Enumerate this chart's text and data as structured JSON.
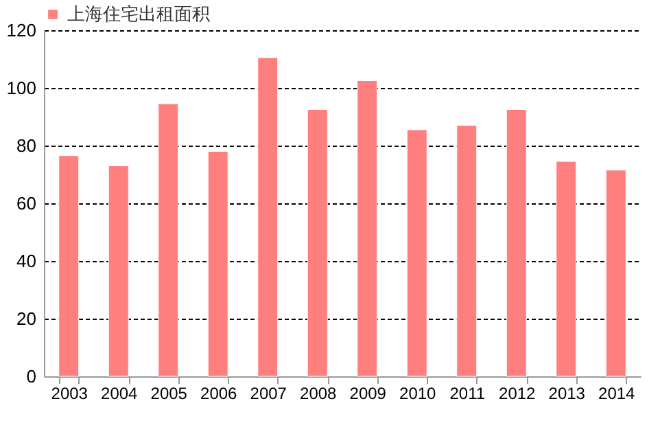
{
  "chart_data": {
    "type": "bar",
    "categories": [
      "2003",
      "2004",
      "2005",
      "2006",
      "2007",
      "2008",
      "2009",
      "2010",
      "2011",
      "2012",
      "2013",
      "2014"
    ],
    "series": [
      {
        "name": "上海住宅出租面积",
        "color": "#ff7f7f",
        "values": [
          76.5,
          73,
          94.5,
          78,
          110.5,
          92.5,
          102.5,
          85.5,
          87,
          92.5,
          74.5,
          71.5
        ]
      }
    ],
    "ylim": [
      0,
      120
    ],
    "yticks": [
      0,
      20,
      40,
      60,
      80,
      100,
      120
    ],
    "grid": "y",
    "legend": "top"
  }
}
